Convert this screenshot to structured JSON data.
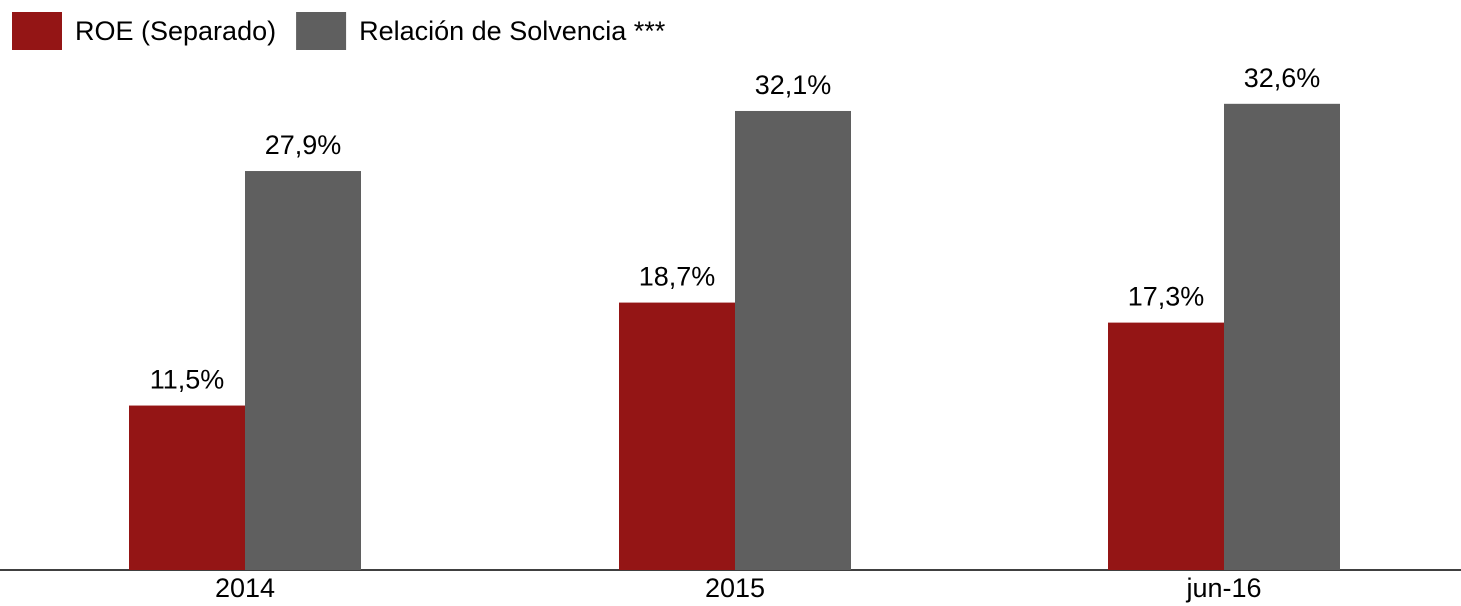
{
  "chart_data": {
    "type": "bar",
    "categories": [
      "2014",
      "2015",
      "jun-16"
    ],
    "series": [
      {
        "name": "ROE (Separado)",
        "color": "#941515",
        "values": [
          11.5,
          18.7,
          17.3
        ],
        "value_labels": [
          "11,5%",
          "18,7%",
          "17,3%"
        ]
      },
      {
        "name": "Relación de Solvencia ***",
        "color": "#5f5f5f",
        "values": [
          27.9,
          32.1,
          32.6
        ],
        "value_labels": [
          "27,9%",
          "32,1%",
          "32,6%"
        ]
      }
    ],
    "legend": "top-left"
  }
}
